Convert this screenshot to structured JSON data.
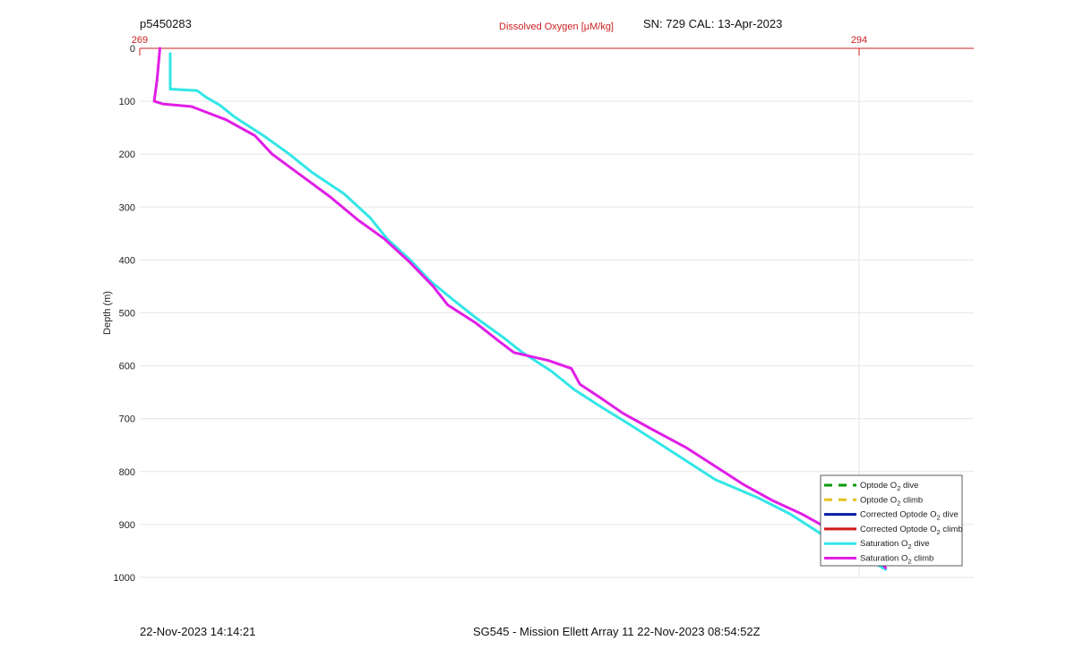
{
  "header": {
    "profile_id": "p5450283",
    "serial_cal": "SN: 729  CAL: 13-Apr-2023"
  },
  "footer": {
    "timestamp": "22-Nov-2023 14:14:21",
    "mission": "SG545 - Mission Ellett Array 11 22-Nov-2023 08:54:52Z"
  },
  "colors": {
    "optode_dive": "#0a9a0a",
    "optode_climb": "#e6c21a",
    "corrected_dive": "#0a1aa6",
    "corrected_climb": "#d01818",
    "saturation_dive": "#33e6e6",
    "saturation_climb": "#e01ee6",
    "top_axis": "#cc2222"
  },
  "chart_data": {
    "type": "line",
    "title": "Dissolved Oxygen [μM/kg]",
    "xlabel_top": "Dissolved Oxygen [μM/kg]",
    "ylabel": "Depth (m)",
    "xlim": [
      269,
      294
    ],
    "x_ticks": [
      "269",
      "294"
    ],
    "ylim": [
      1000,
      0
    ],
    "y_ticks": [
      0,
      100,
      200,
      300,
      400,
      500,
      600,
      700,
      800,
      900,
      1000
    ],
    "grid": true,
    "legend_position": "bottom-right",
    "legend": [
      {
        "label_prefix": "Optode O",
        "sub": "2",
        "label_suffix": " dive",
        "style": "dashed",
        "color_key": "optode_dive"
      },
      {
        "label_prefix": "Optode O",
        "sub": "2",
        "label_suffix": " climb",
        "style": "dashed",
        "color_key": "optode_climb"
      },
      {
        "label_prefix": "Corrected Optode O",
        "sub": "2",
        "label_suffix": " dive",
        "style": "solid",
        "color_key": "corrected_dive"
      },
      {
        "label_prefix": "Corrected Optode O",
        "sub": "2",
        "label_suffix": " climb",
        "style": "solid",
        "color_key": "corrected_climb"
      },
      {
        "label_prefix": "Saturation O",
        "sub": "2",
        "label_suffix": " dive",
        "style": "solid",
        "color_key": "saturation_dive"
      },
      {
        "label_prefix": "Saturation O",
        "sub": "2",
        "label_suffix": " climb",
        "style": "solid",
        "color_key": "saturation_climb"
      }
    ],
    "series": [
      {
        "name": "Saturation O2 dive",
        "color_key": "saturation_dive",
        "points": [
          [
            270.06,
            10
          ],
          [
            270.06,
            77
          ],
          [
            271.0,
            80
          ],
          [
            271.3,
            92
          ],
          [
            271.8,
            108
          ],
          [
            272.3,
            130
          ],
          [
            273.3,
            165
          ],
          [
            274.2,
            200
          ],
          [
            275.0,
            235
          ],
          [
            276.1,
            275
          ],
          [
            277.0,
            320
          ],
          [
            277.6,
            360
          ],
          [
            278.4,
            400
          ],
          [
            279.1,
            440
          ],
          [
            280.0,
            480
          ],
          [
            280.7,
            510
          ],
          [
            281.6,
            545
          ],
          [
            282.3,
            575
          ],
          [
            283.3,
            610
          ],
          [
            284.1,
            645
          ],
          [
            285.1,
            680
          ],
          [
            286.0,
            710
          ],
          [
            287.0,
            745
          ],
          [
            288.0,
            780
          ],
          [
            289.0,
            815
          ],
          [
            290.5,
            850
          ],
          [
            291.6,
            880
          ],
          [
            292.6,
            915
          ],
          [
            293.6,
            950
          ],
          [
            294.6,
            975
          ],
          [
            294.92,
            985
          ]
        ]
      },
      {
        "name": "Saturation O2 climb",
        "color_key": "saturation_climb",
        "points": [
          [
            269.7,
            0
          ],
          [
            269.6,
            60
          ],
          [
            269.5,
            100
          ],
          [
            269.8,
            105
          ],
          [
            270.8,
            110
          ],
          [
            272.0,
            135
          ],
          [
            273.0,
            165
          ],
          [
            273.6,
            200
          ],
          [
            274.6,
            240
          ],
          [
            275.6,
            280
          ],
          [
            276.6,
            325
          ],
          [
            277.5,
            360
          ],
          [
            278.4,
            405
          ],
          [
            279.2,
            450
          ],
          [
            279.7,
            485
          ],
          [
            280.7,
            520
          ],
          [
            281.4,
            550
          ],
          [
            282.0,
            575
          ],
          [
            283.2,
            590
          ],
          [
            284.0,
            605
          ],
          [
            284.3,
            635
          ],
          [
            285.0,
            660
          ],
          [
            285.8,
            690
          ],
          [
            286.8,
            720
          ],
          [
            288.0,
            755
          ],
          [
            289.0,
            790
          ],
          [
            290.0,
            825
          ],
          [
            291.0,
            855
          ],
          [
            292.0,
            880
          ],
          [
            293.0,
            910
          ],
          [
            294.0,
            940
          ],
          [
            294.8,
            975
          ],
          [
            294.92,
            982
          ]
        ]
      }
    ]
  }
}
